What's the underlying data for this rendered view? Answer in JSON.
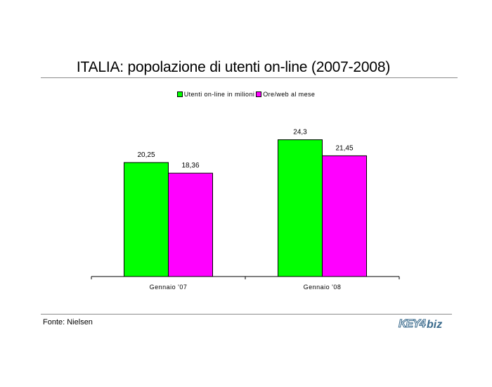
{
  "title": "ITALIA: popolazione di utenti on-line (2007-2008)",
  "source": "Fonte: Nielsen",
  "logo": {
    "text": "KEY4biz"
  },
  "colors": {
    "green": "#00ff00",
    "magenta": "#ff00ff"
  },
  "chart_data": {
    "type": "bar",
    "categories": [
      "Gennaio '07",
      "Gennaio '08"
    ],
    "series": [
      {
        "name": "Utenti on-line in milioni",
        "values": [
          20.25,
          24.3
        ],
        "labels": [
          "20,25",
          "24,3"
        ],
        "color": "#00ff00"
      },
      {
        "name": "Ore/web al mese",
        "values": [
          18.36,
          21.45
        ],
        "labels": [
          "18,36",
          "21,45"
        ],
        "color": "#ff00ff"
      }
    ],
    "legend": "top-center",
    "grid": false
  }
}
